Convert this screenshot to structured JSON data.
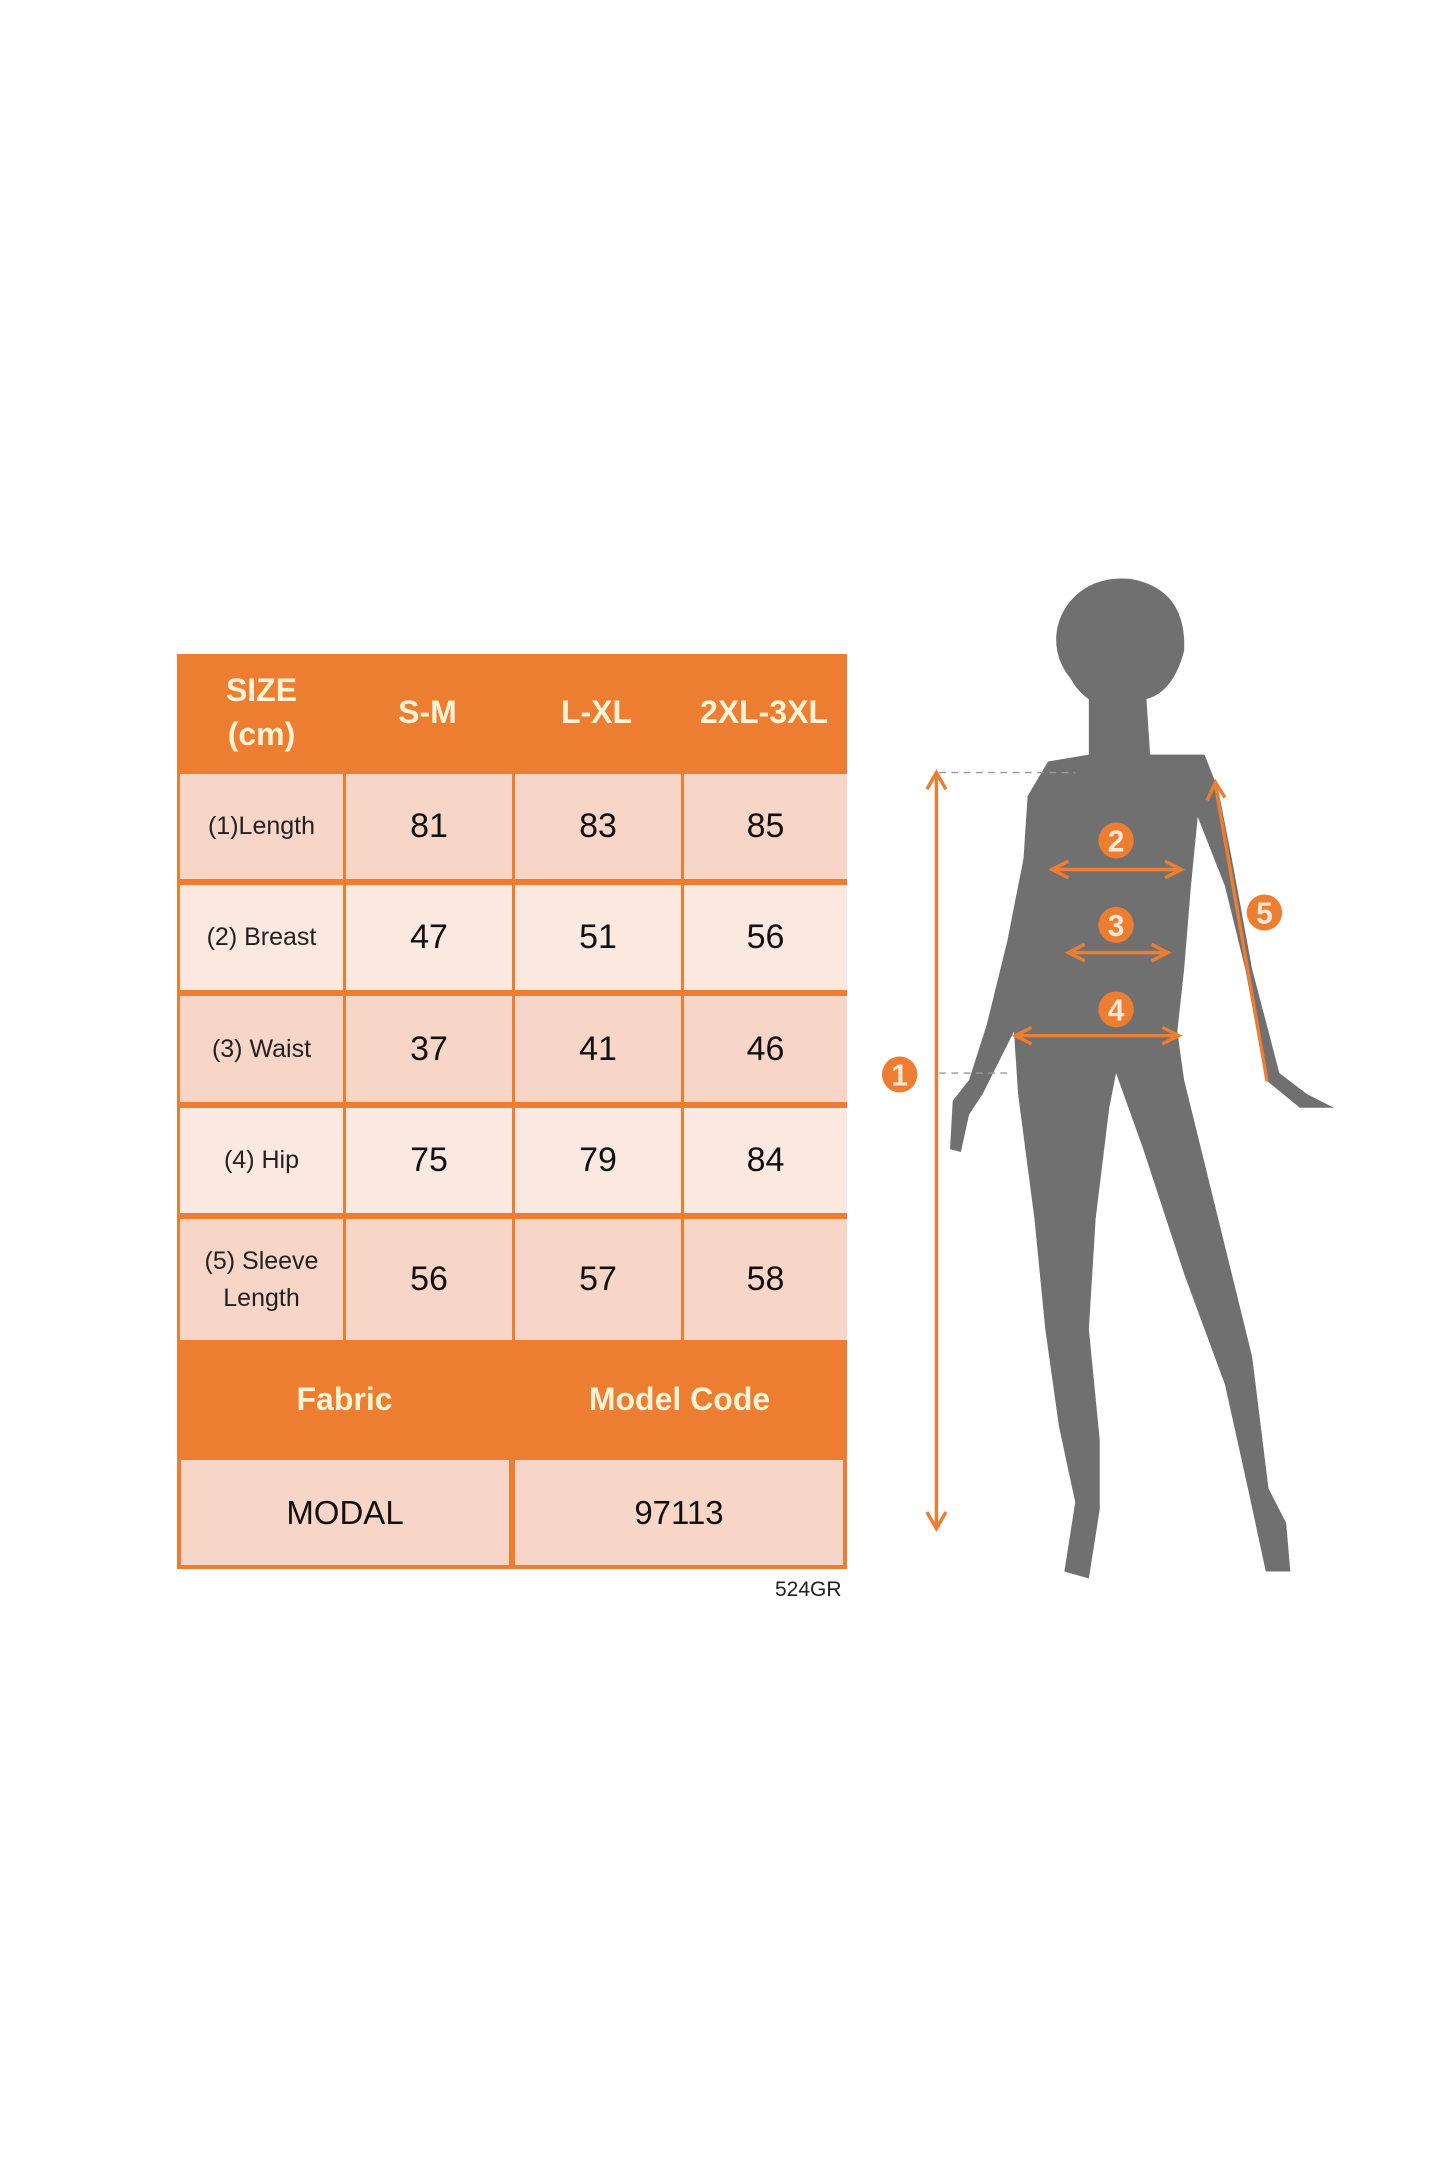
{
  "table": {
    "headers": [
      "SIZE\n(cm)",
      "S-M",
      "L-XL",
      "2XL-3XL"
    ],
    "header_line1": "SIZE",
    "header_line2": "(cm)",
    "rows": [
      {
        "label": "(1)Length",
        "values": [
          "81",
          "83",
          "85"
        ]
      },
      {
        "label": "(2) Breast",
        "values": [
          "47",
          "51",
          "56"
        ]
      },
      {
        "label": "(3) Waist",
        "values": [
          "37",
          "41",
          "46"
        ]
      },
      {
        "label": "(4) Hip",
        "values": [
          "75",
          "79",
          "84"
        ]
      },
      {
        "label": "(5) Sleeve Length",
        "values": [
          "56",
          "57",
          "58"
        ]
      }
    ],
    "fabric_label": "Fabric",
    "model_code_label": "Model Code",
    "fabric_value": "MODAL",
    "model_code_value": "97113"
  },
  "code": "524GR",
  "figure": {
    "markers": [
      "1",
      "2",
      "3",
      "4",
      "5"
    ]
  },
  "colors": {
    "accent": "#ED7D31",
    "cell": "#F7D6C8",
    "silhouette": "#707070"
  }
}
